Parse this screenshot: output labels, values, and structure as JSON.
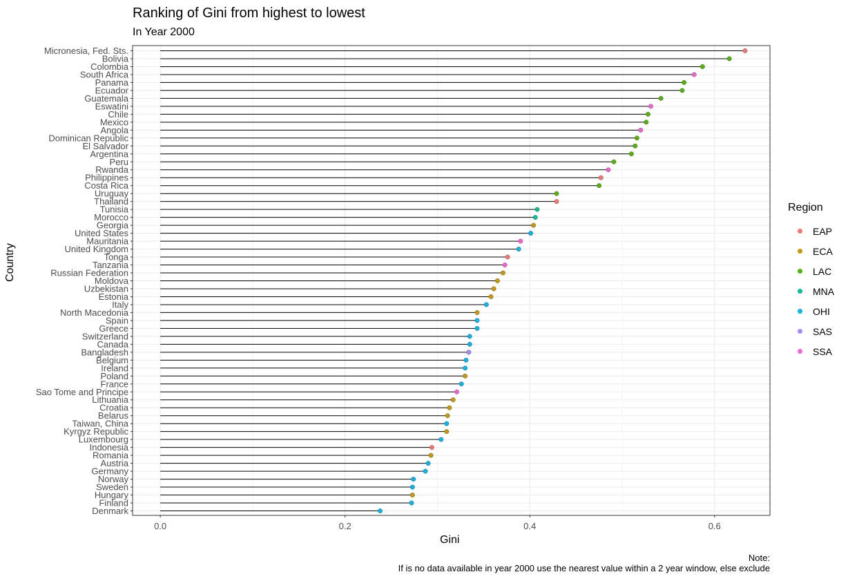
{
  "chart_data": {
    "type": "lollipop",
    "title": "Ranking of Gini from highest to lowest",
    "subtitle": "In Year 2000",
    "xlabel": "Gini",
    "ylabel": "Country",
    "xlim": [
      -0.03,
      0.66
    ],
    "xticks": [
      0.0,
      0.2,
      0.4,
      0.6
    ],
    "xtick_labels": [
      "0.0",
      "0.2",
      "0.4",
      "0.6"
    ],
    "grid": true,
    "legend": {
      "title": "Region",
      "position": "right"
    },
    "regions": [
      {
        "name": "EAP",
        "color": "#F8766D"
      },
      {
        "name": "ECA",
        "color": "#C49A00"
      },
      {
        "name": "LAC",
        "color": "#53B400"
      },
      {
        "name": "MNA",
        "color": "#00C094"
      },
      {
        "name": "OHI",
        "color": "#00B6EB"
      },
      {
        "name": "SAS",
        "color": "#A58AFF"
      },
      {
        "name": "SSA",
        "color": "#FB61D7"
      }
    ],
    "points": [
      {
        "country": "Micronesia, Fed. Sts.",
        "gini": 0.633,
        "region": "EAP"
      },
      {
        "country": "Bolivia",
        "gini": 0.616,
        "region": "LAC"
      },
      {
        "country": "Colombia",
        "gini": 0.587,
        "region": "LAC"
      },
      {
        "country": "South Africa",
        "gini": 0.578,
        "region": "SSA"
      },
      {
        "country": "Panama",
        "gini": 0.567,
        "region": "LAC"
      },
      {
        "country": "Ecuador",
        "gini": 0.565,
        "region": "LAC"
      },
      {
        "country": "Guatemala",
        "gini": 0.542,
        "region": "LAC"
      },
      {
        "country": "Eswatini",
        "gini": 0.531,
        "region": "SSA"
      },
      {
        "country": "Chile",
        "gini": 0.528,
        "region": "LAC"
      },
      {
        "country": "Mexico",
        "gini": 0.526,
        "region": "LAC"
      },
      {
        "country": "Angola",
        "gini": 0.52,
        "region": "SSA"
      },
      {
        "country": "Dominican Republic",
        "gini": 0.516,
        "region": "LAC"
      },
      {
        "country": "El Salvador",
        "gini": 0.514,
        "region": "LAC"
      },
      {
        "country": "Argentina",
        "gini": 0.51,
        "region": "LAC"
      },
      {
        "country": "Peru",
        "gini": 0.491,
        "region": "LAC"
      },
      {
        "country": "Rwanda",
        "gini": 0.485,
        "region": "SSA"
      },
      {
        "country": "Philippines",
        "gini": 0.477,
        "region": "EAP"
      },
      {
        "country": "Costa Rica",
        "gini": 0.475,
        "region": "LAC"
      },
      {
        "country": "Uruguay",
        "gini": 0.429,
        "region": "LAC"
      },
      {
        "country": "Thailand",
        "gini": 0.429,
        "region": "EAP"
      },
      {
        "country": "Tunisia",
        "gini": 0.408,
        "region": "MNA"
      },
      {
        "country": "Morocco",
        "gini": 0.406,
        "region": "MNA"
      },
      {
        "country": "Georgia",
        "gini": 0.404,
        "region": "ECA"
      },
      {
        "country": "United States",
        "gini": 0.401,
        "region": "OHI"
      },
      {
        "country": "Mauritania",
        "gini": 0.39,
        "region": "SSA"
      },
      {
        "country": "United Kingdom",
        "gini": 0.388,
        "region": "OHI"
      },
      {
        "country": "Tonga",
        "gini": 0.376,
        "region": "EAP"
      },
      {
        "country": "Tanzania",
        "gini": 0.373,
        "region": "SSA"
      },
      {
        "country": "Russian Federation",
        "gini": 0.371,
        "region": "ECA"
      },
      {
        "country": "Moldova",
        "gini": 0.365,
        "region": "ECA"
      },
      {
        "country": "Uzbekistan",
        "gini": 0.361,
        "region": "ECA"
      },
      {
        "country": "Estonia",
        "gini": 0.358,
        "region": "ECA"
      },
      {
        "country": "Italy",
        "gini": 0.353,
        "region": "OHI"
      },
      {
        "country": "North Macedonia",
        "gini": 0.343,
        "region": "ECA"
      },
      {
        "country": "Spain",
        "gini": 0.343,
        "region": "OHI"
      },
      {
        "country": "Greece",
        "gini": 0.343,
        "region": "OHI"
      },
      {
        "country": "Switzerland",
        "gini": 0.335,
        "region": "OHI"
      },
      {
        "country": "Canada",
        "gini": 0.335,
        "region": "OHI"
      },
      {
        "country": "Bangladesh",
        "gini": 0.334,
        "region": "SAS"
      },
      {
        "country": "Belgium",
        "gini": 0.331,
        "region": "OHI"
      },
      {
        "country": "Ireland",
        "gini": 0.33,
        "region": "OHI"
      },
      {
        "country": "Poland",
        "gini": 0.33,
        "region": "ECA"
      },
      {
        "country": "France",
        "gini": 0.326,
        "region": "OHI"
      },
      {
        "country": "Sao Tome and Principe",
        "gini": 0.321,
        "region": "SSA"
      },
      {
        "country": "Lithuania",
        "gini": 0.317,
        "region": "ECA"
      },
      {
        "country": "Croatia",
        "gini": 0.313,
        "region": "ECA"
      },
      {
        "country": "Belarus",
        "gini": 0.311,
        "region": "ECA"
      },
      {
        "country": "Taiwan, China",
        "gini": 0.31,
        "region": "OHI"
      },
      {
        "country": "Kyrgyz Republic",
        "gini": 0.31,
        "region": "ECA"
      },
      {
        "country": "Luxembourg",
        "gini": 0.304,
        "region": "OHI"
      },
      {
        "country": "Indonesia",
        "gini": 0.294,
        "region": "EAP"
      },
      {
        "country": "Romania",
        "gini": 0.293,
        "region": "ECA"
      },
      {
        "country": "Austria",
        "gini": 0.29,
        "region": "OHI"
      },
      {
        "country": "Germany",
        "gini": 0.287,
        "region": "OHI"
      },
      {
        "country": "Norway",
        "gini": 0.274,
        "region": "OHI"
      },
      {
        "country": "Sweden",
        "gini": 0.273,
        "region": "OHI"
      },
      {
        "country": "Hungary",
        "gini": 0.273,
        "region": "ECA"
      },
      {
        "country": "Finland",
        "gini": 0.272,
        "region": "OHI"
      },
      {
        "country": "Denmark",
        "gini": 0.238,
        "region": "OHI"
      }
    ],
    "note_line1": "Note:",
    "note_line2": "If is no data available in year 2000 use the nearest value within a 2 year window, else exclude"
  }
}
